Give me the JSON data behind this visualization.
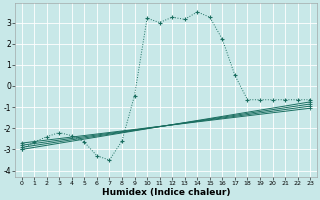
{
  "xlabel": "Humidex (Indice chaleur)",
  "bg_color": "#c8e8e8",
  "grid_color": "#b8d8d8",
  "line_color": "#1a6e60",
  "xlim": [
    -0.5,
    23.5
  ],
  "ylim": [
    -4.3,
    3.9
  ],
  "xticks": [
    0,
    1,
    2,
    3,
    4,
    5,
    6,
    7,
    8,
    9,
    10,
    11,
    12,
    13,
    14,
    15,
    16,
    17,
    18,
    19,
    20,
    21,
    22,
    23
  ],
  "yticks": [
    -4,
    -3,
    -2,
    -1,
    0,
    1,
    2,
    3
  ],
  "curve_x": [
    0,
    1,
    2,
    3,
    4,
    5,
    6,
    7,
    8,
    9,
    10,
    11,
    12,
    13,
    14,
    15,
    16,
    17,
    18,
    19,
    20,
    21,
    22,
    23
  ],
  "curve_y": [
    -3.0,
    -2.65,
    -2.4,
    -2.2,
    -2.35,
    -2.65,
    -3.3,
    -3.5,
    -2.6,
    -0.45,
    3.2,
    3.0,
    3.25,
    3.15,
    3.5,
    3.25,
    2.2,
    0.5,
    -0.65,
    -0.65,
    -0.65,
    -0.65,
    -0.65,
    -0.65
  ],
  "line1_x": [
    0,
    23
  ],
  "line1_y": [
    -3.0,
    -0.75
  ],
  "line2_x": [
    0,
    23
  ],
  "line2_y": [
    -2.9,
    -0.85
  ],
  "line3_x": [
    0,
    23
  ],
  "line3_y": [
    -2.8,
    -0.95
  ],
  "line4_x": [
    0,
    23
  ],
  "line4_y": [
    -2.7,
    -1.05
  ]
}
